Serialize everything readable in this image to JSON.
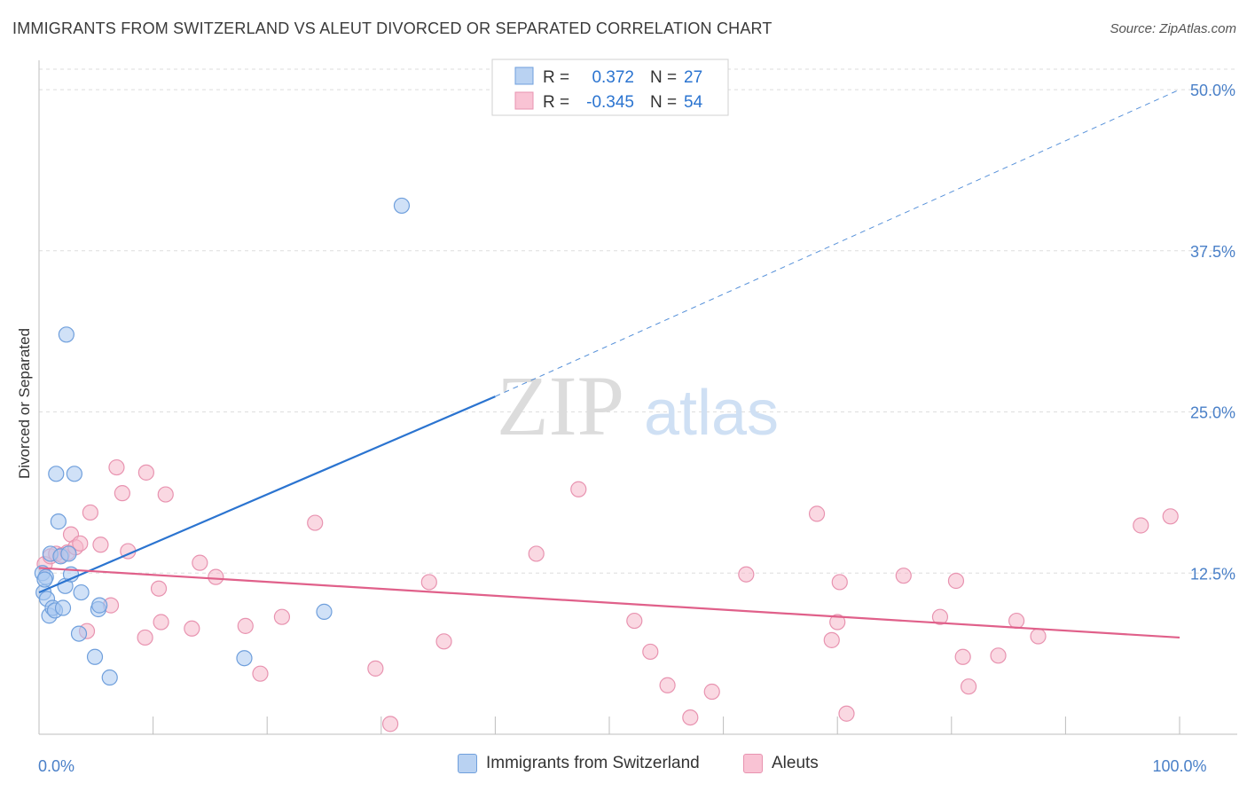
{
  "title": "IMMIGRANTS FROM SWITZERLAND VS ALEUT DIVORCED OR SEPARATED CORRELATION CHART",
  "source": "Source: ZipAtlas.com",
  "watermark": {
    "zip": "ZIP",
    "atlas": "atlas"
  },
  "colors": {
    "blue_fill": "#aac8f0",
    "blue_stroke": "#6f9fdc",
    "blue_line": "#2b74d0",
    "pink_fill": "#f6b8cb",
    "pink_stroke": "#e893b0",
    "pink_line": "#e0608a",
    "tick_text": "#4a80c8"
  },
  "stats_legend": {
    "rows": [
      {
        "r_label": "R =",
        "r_value": "0.372",
        "n_label": "N =",
        "n_value": "27"
      },
      {
        "r_label": "R =",
        "r_value": "-0.345",
        "n_label": "N =",
        "n_value": "54"
      }
    ]
  },
  "chart_data": {
    "type": "scatter",
    "ylabel": "Divorced or Separated",
    "xlabel": "",
    "xlim": [
      0,
      100
    ],
    "ylim": [
      0,
      52
    ],
    "x_tick_labels": [
      {
        "x": 0,
        "label": "0.0%"
      },
      {
        "x": 100,
        "label": "100.0%"
      }
    ],
    "y_tick_labels": [
      {
        "y": 12.5,
        "label": "12.5%"
      },
      {
        "y": 25.0,
        "label": "25.0%"
      },
      {
        "y": 37.5,
        "label": "37.5%"
      },
      {
        "y": 50.0,
        "label": "50.0%"
      }
    ],
    "grid": true,
    "legend_position": "bottom",
    "series": [
      {
        "name": "Immigrants from Switzerland",
        "color": "blue",
        "points": [
          [
            0.3,
            12.5
          ],
          [
            0.4,
            11.0
          ],
          [
            0.6,
            12.2
          ],
          [
            0.7,
            10.5
          ],
          [
            0.9,
            9.2
          ],
          [
            1.0,
            14.0
          ],
          [
            1.2,
            9.8
          ],
          [
            1.4,
            9.6
          ],
          [
            1.5,
            20.2
          ],
          [
            1.7,
            16.5
          ],
          [
            1.9,
            13.8
          ],
          [
            2.1,
            9.8
          ],
          [
            2.3,
            11.5
          ],
          [
            2.4,
            31.0
          ],
          [
            2.6,
            14.0
          ],
          [
            2.8,
            12.4
          ],
          [
            3.1,
            20.2
          ],
          [
            3.5,
            7.8
          ],
          [
            3.7,
            11.0
          ],
          [
            4.9,
            6.0
          ],
          [
            5.2,
            9.7
          ],
          [
            5.3,
            10.0
          ],
          [
            6.2,
            4.4
          ],
          [
            18.0,
            5.9
          ],
          [
            25.0,
            9.5
          ],
          [
            31.8,
            41.0
          ],
          [
            0.5,
            12.0
          ]
        ],
        "trend": {
          "x": [
            0,
            40
          ],
          "y": [
            11.0,
            26.2
          ]
        },
        "trend_extension": {
          "x": [
            40,
            100
          ],
          "y": [
            26.2,
            50.0
          ]
        }
      },
      {
        "name": "Aleuts",
        "color": "pink",
        "points": [
          [
            0.5,
            13.2
          ],
          [
            1.0,
            13.8
          ],
          [
            1.5,
            14.0
          ],
          [
            2.0,
            13.9
          ],
          [
            2.5,
            14.1
          ],
          [
            2.8,
            15.5
          ],
          [
            3.2,
            14.5
          ],
          [
            3.6,
            14.8
          ],
          [
            4.2,
            8.0
          ],
          [
            4.5,
            17.2
          ],
          [
            5.4,
            14.7
          ],
          [
            6.3,
            10.0
          ],
          [
            6.8,
            20.7
          ],
          [
            7.3,
            18.7
          ],
          [
            7.8,
            14.2
          ],
          [
            9.3,
            7.5
          ],
          [
            9.4,
            20.3
          ],
          [
            10.5,
            11.3
          ],
          [
            10.7,
            8.7
          ],
          [
            11.1,
            18.6
          ],
          [
            13.4,
            8.2
          ],
          [
            14.1,
            13.3
          ],
          [
            15.5,
            12.2
          ],
          [
            18.1,
            8.4
          ],
          [
            19.4,
            4.7
          ],
          [
            21.3,
            9.1
          ],
          [
            24.2,
            16.4
          ],
          [
            29.5,
            5.1
          ],
          [
            30.8,
            0.8
          ],
          [
            34.2,
            11.8
          ],
          [
            35.5,
            7.2
          ],
          [
            43.6,
            14.0
          ],
          [
            47.3,
            19.0
          ],
          [
            52.2,
            8.8
          ],
          [
            53.6,
            6.4
          ],
          [
            55.1,
            3.8
          ],
          [
            57.1,
            1.3
          ],
          [
            59.0,
            3.3
          ],
          [
            62.0,
            12.4
          ],
          [
            68.2,
            17.1
          ],
          [
            69.5,
            7.3
          ],
          [
            70.0,
            8.7
          ],
          [
            70.2,
            11.8
          ],
          [
            70.8,
            1.6
          ],
          [
            75.8,
            12.3
          ],
          [
            79.0,
            9.1
          ],
          [
            80.4,
            11.9
          ],
          [
            81.0,
            6.0
          ],
          [
            81.5,
            3.7
          ],
          [
            84.1,
            6.1
          ],
          [
            85.7,
            8.8
          ],
          [
            87.6,
            7.6
          ],
          [
            96.6,
            16.2
          ],
          [
            99.2,
            16.9
          ]
        ],
        "trend": {
          "x": [
            0,
            100
          ],
          "y": [
            12.9,
            7.5
          ]
        }
      }
    ]
  }
}
